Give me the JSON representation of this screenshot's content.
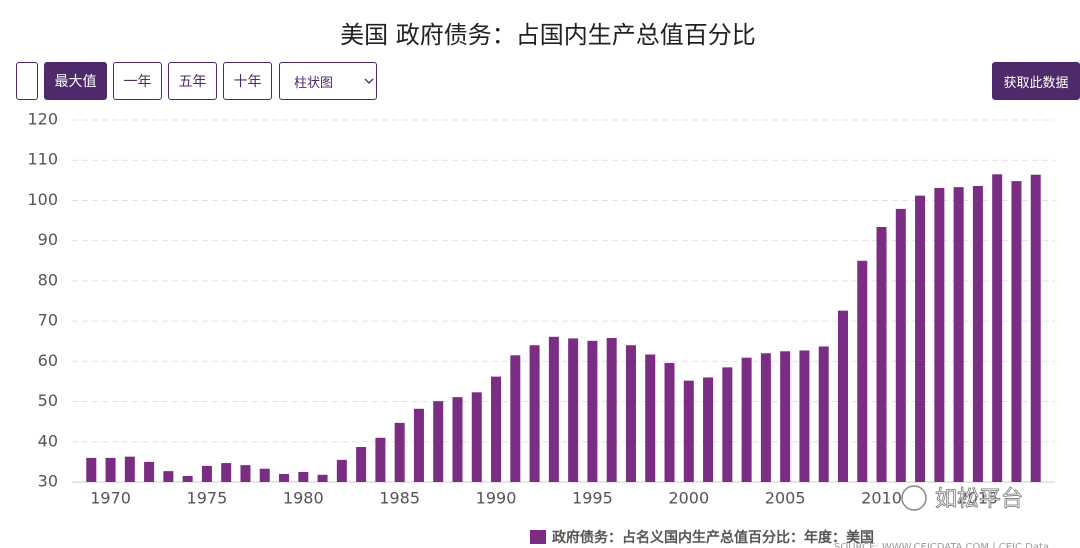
{
  "toolbar": {
    "buttons": [
      "最大值",
      "一年",
      "五年",
      "十年"
    ],
    "select": "柱状图",
    "action": "获取此数据"
  },
  "chart_data": {
    "type": "bar",
    "title": "美国 政府债务：占国内生产总值百分比",
    "x": [
      1969,
      1970,
      1971,
      1972,
      1973,
      1974,
      1975,
      1976,
      1977,
      1978,
      1979,
      1980,
      1981,
      1982,
      1983,
      1984,
      1985,
      1986,
      1987,
      1988,
      1989,
      1990,
      1991,
      1992,
      1993,
      1994,
      1995,
      1996,
      1997,
      1998,
      1999,
      2000,
      2001,
      2002,
      2003,
      2004,
      2005,
      2006,
      2007,
      2008,
      2009,
      2010,
      2011,
      2012,
      2013,
      2014,
      2015,
      2016,
      2017,
      2018
    ],
    "series": [
      {
        "name": "政府债务：占名义国内生产总值百分比：年度：美国",
        "color": "#7b2d83",
        "values": [
          36,
          36,
          36.3,
          35,
          32.7,
          31.5,
          34,
          34.7,
          34.2,
          33.3,
          32,
          32.5,
          31.8,
          35.5,
          38.7,
          41,
          44.7,
          48.2,
          50.1,
          51.1,
          52.3,
          56.2,
          61.5,
          64,
          66.1,
          65.7,
          65.1,
          65.8,
          64,
          61.7,
          59.6,
          55.2,
          56,
          58.5,
          60.9,
          62,
          62.5,
          62.7,
          63.7,
          72.6,
          85,
          93.4,
          97.9,
          101.2,
          103.1,
          103.3,
          103.6,
          106.5,
          104.8,
          106.4
        ]
      }
    ],
    "xlim": [
      1968,
      2019
    ],
    "xticks": [
      1970,
      1975,
      1980,
      1985,
      1990,
      1995,
      2000,
      2005,
      2010,
      2015
    ],
    "ylim": [
      30,
      120
    ],
    "yticks": [
      30,
      40,
      50,
      60,
      70,
      80,
      90,
      100,
      110,
      120
    ],
    "grid": true,
    "source": "SOURCE: WWW.CEICDATA.COM | CEIC Data"
  },
  "watermark": "如松平台"
}
